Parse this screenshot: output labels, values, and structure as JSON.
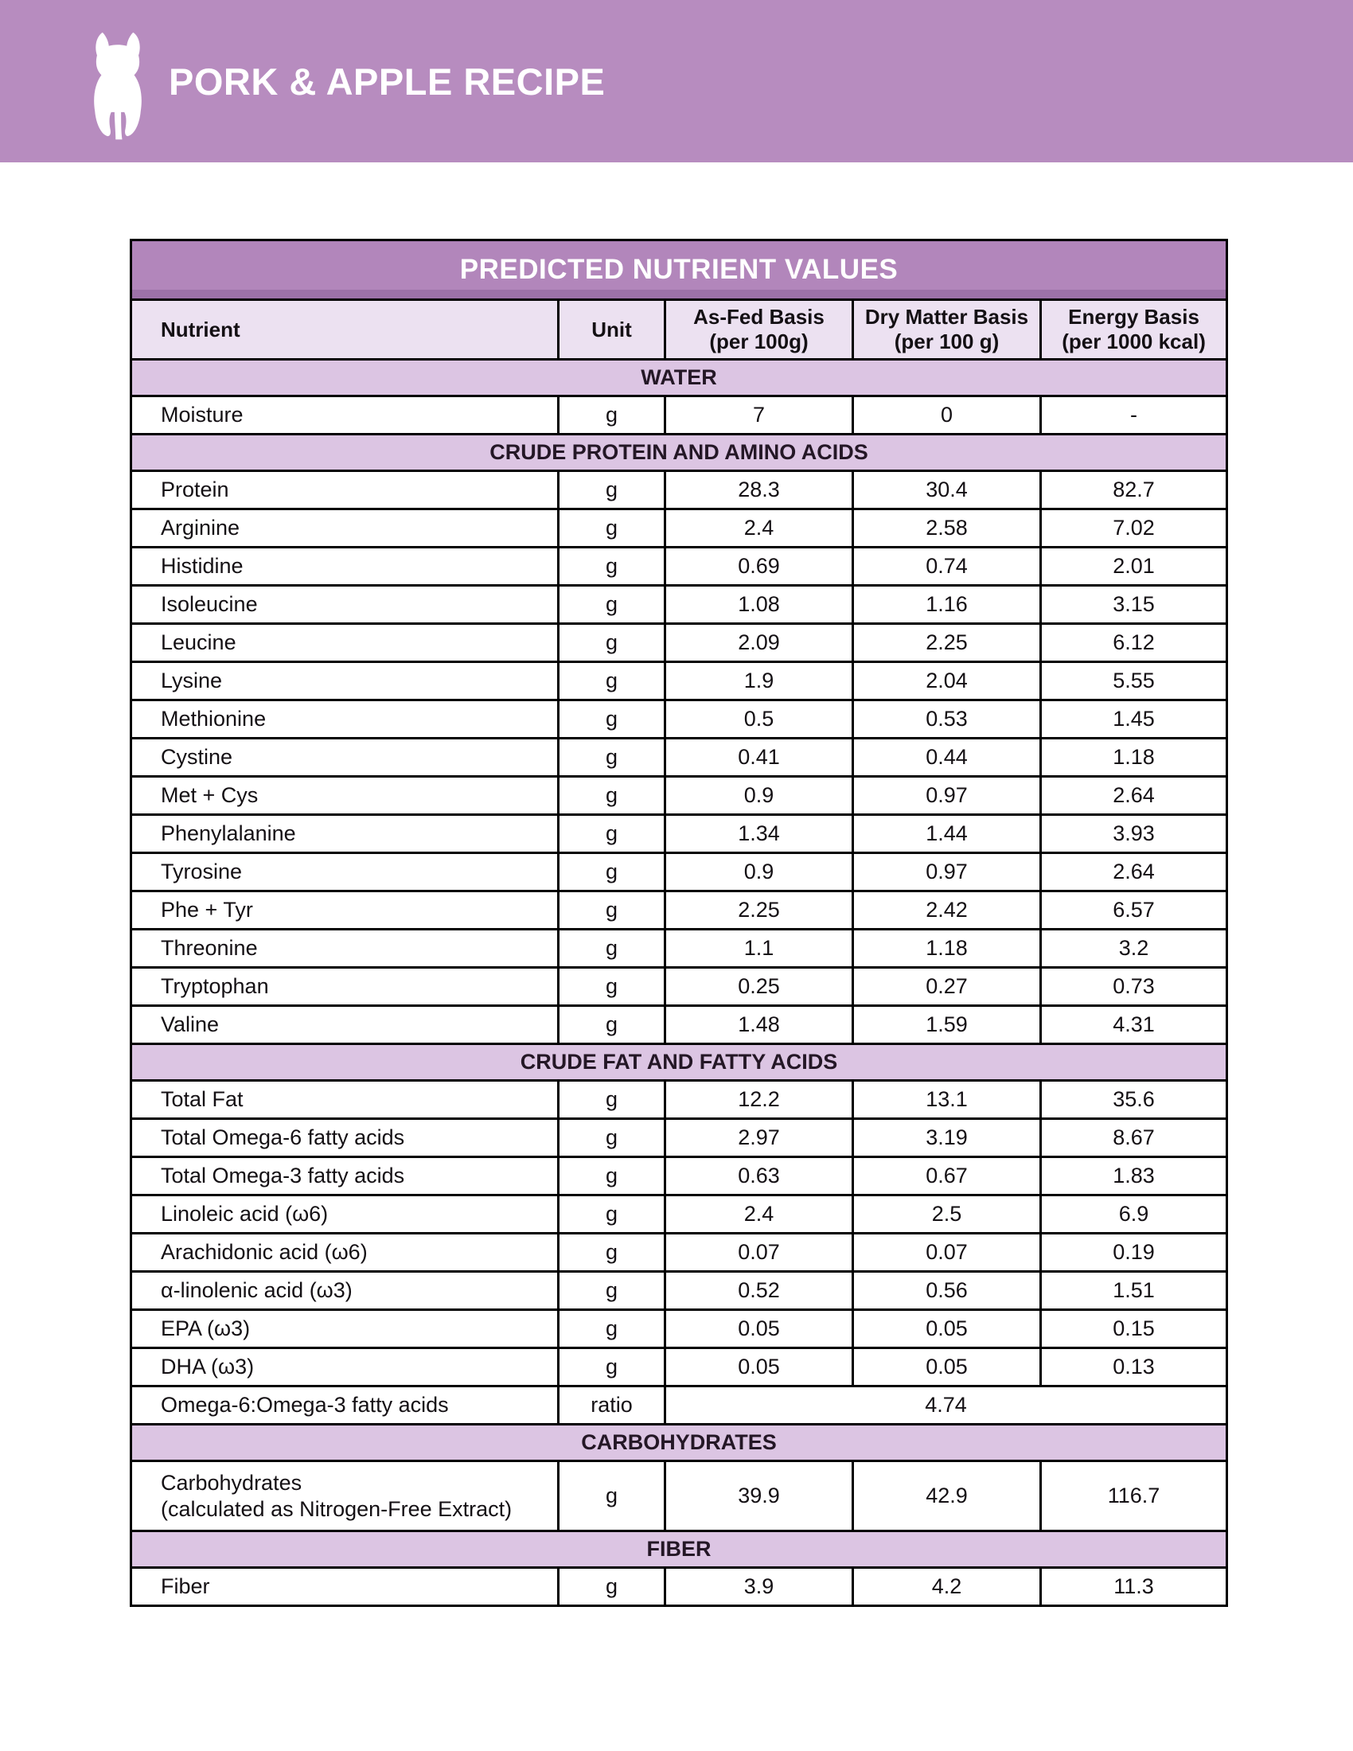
{
  "colors": {
    "banner": "#b78cbf",
    "titlebar": "#b286bb",
    "titlebar-edge": "#9d72a9",
    "headerbg": "#ece1f1",
    "sectionbg": "#dcc5e3",
    "ink": "#141014",
    "line": "#000000",
    "paper": "#ffffff"
  },
  "banner": {
    "title": "PORK & APPLE RECIPE",
    "logo": "dog-silhouette"
  },
  "table": {
    "title": "PREDICTED NUTRIENT VALUES",
    "columns": [
      {
        "key": "nutrient",
        "label": "Nutrient"
      },
      {
        "key": "unit",
        "label": "Unit"
      },
      {
        "key": "as_fed",
        "label": "As-Fed Basis",
        "sub": "(per 100g)"
      },
      {
        "key": "dry_matter",
        "label": "Dry Matter Basis",
        "sub": "(per 100 g)"
      },
      {
        "key": "energy",
        "label": "Energy Basis",
        "sub": "(per 1000 kcal)"
      }
    ],
    "sections": [
      {
        "header": "WATER",
        "rows": [
          {
            "nutrient": "Moisture",
            "unit": "g",
            "as_fed": "7",
            "dry_matter": "0",
            "energy": "-"
          }
        ]
      },
      {
        "header": "CRUDE PROTEIN AND AMINO ACIDS",
        "rows": [
          {
            "nutrient": "Protein",
            "unit": "g",
            "as_fed": "28.3",
            "dry_matter": "30.4",
            "energy": "82.7"
          },
          {
            "nutrient": "Arginine",
            "unit": "g",
            "as_fed": "2.4",
            "dry_matter": "2.58",
            "energy": "7.02"
          },
          {
            "nutrient": "Histidine",
            "unit": "g",
            "as_fed": "0.69",
            "dry_matter": "0.74",
            "energy": "2.01"
          },
          {
            "nutrient": "Isoleucine",
            "unit": "g",
            "as_fed": "1.08",
            "dry_matter": "1.16",
            "energy": "3.15"
          },
          {
            "nutrient": "Leucine",
            "unit": "g",
            "as_fed": "2.09",
            "dry_matter": "2.25",
            "energy": "6.12"
          },
          {
            "nutrient": "Lysine",
            "unit": "g",
            "as_fed": "1.9",
            "dry_matter": "2.04",
            "energy": "5.55"
          },
          {
            "nutrient": "Methionine",
            "unit": "g",
            "as_fed": "0.5",
            "dry_matter": "0.53",
            "energy": "1.45"
          },
          {
            "nutrient": "Cystine",
            "unit": "g",
            "as_fed": "0.41",
            "dry_matter": "0.44",
            "energy": "1.18"
          },
          {
            "nutrient": "Met + Cys",
            "unit": "g",
            "as_fed": "0.9",
            "dry_matter": "0.97",
            "energy": "2.64"
          },
          {
            "nutrient": "Phenylalanine",
            "unit": "g",
            "as_fed": "1.34",
            "dry_matter": "1.44",
            "energy": "3.93"
          },
          {
            "nutrient": "Tyrosine",
            "unit": "g",
            "as_fed": "0.9",
            "dry_matter": "0.97",
            "energy": "2.64"
          },
          {
            "nutrient": "Phe + Tyr",
            "unit": "g",
            "as_fed": "2.25",
            "dry_matter": "2.42",
            "energy": "6.57"
          },
          {
            "nutrient": "Threonine",
            "unit": "g",
            "as_fed": "1.1",
            "dry_matter": "1.18",
            "energy": "3.2"
          },
          {
            "nutrient": "Tryptophan",
            "unit": "g",
            "as_fed": "0.25",
            "dry_matter": "0.27",
            "energy": "0.73"
          },
          {
            "nutrient": "Valine",
            "unit": "g",
            "as_fed": "1.48",
            "dry_matter": "1.59",
            "energy": "4.31"
          }
        ]
      },
      {
        "header": "CRUDE FAT AND FATTY ACIDS",
        "rows": [
          {
            "nutrient": "Total Fat",
            "unit": "g",
            "as_fed": "12.2",
            "dry_matter": "13.1",
            "energy": "35.6"
          },
          {
            "nutrient": "Total Omega-6 fatty acids",
            "unit": "g",
            "as_fed": "2.97",
            "dry_matter": "3.19",
            "energy": "8.67"
          },
          {
            "nutrient": "Total Omega-3 fatty acids",
            "unit": "g",
            "as_fed": "0.63",
            "dry_matter": "0.67",
            "energy": "1.83"
          },
          {
            "nutrient": "Linoleic acid (ω6)",
            "unit": "g",
            "as_fed": "2.4",
            "dry_matter": "2.5",
            "energy": "6.9"
          },
          {
            "nutrient": "Arachidonic acid (ω6)",
            "unit": "g",
            "as_fed": "0.07",
            "dry_matter": "0.07",
            "energy": "0.19"
          },
          {
            "nutrient": "α-linolenic acid (ω3)",
            "unit": "g",
            "as_fed": "0.52",
            "dry_matter": "0.56",
            "energy": "1.51"
          },
          {
            "nutrient": "EPA (ω3)",
            "unit": "g",
            "as_fed": "0.05",
            "dry_matter": "0.05",
            "energy": "0.15"
          },
          {
            "nutrient": "DHA (ω3)",
            "unit": "g",
            "as_fed": "0.05",
            "dry_matter": "0.05",
            "energy": "0.13"
          },
          {
            "nutrient": "Omega-6:Omega-3 fatty acids",
            "unit": "ratio",
            "merged_value": "4.74"
          }
        ]
      },
      {
        "header": "CARBOHYDRATES",
        "rows": [
          {
            "nutrient": "Carbohydrates",
            "nutrient_line2": "(calculated as Nitrogen-Free Extract)",
            "tall": true,
            "unit": "g",
            "as_fed": "39.9",
            "dry_matter": "42.9",
            "energy": "116.7"
          }
        ]
      },
      {
        "header": "FIBER",
        "rows": [
          {
            "nutrient": "Fiber",
            "unit": "g",
            "as_fed": "3.9",
            "dry_matter": "4.2",
            "energy": "11.3"
          }
        ]
      }
    ]
  }
}
